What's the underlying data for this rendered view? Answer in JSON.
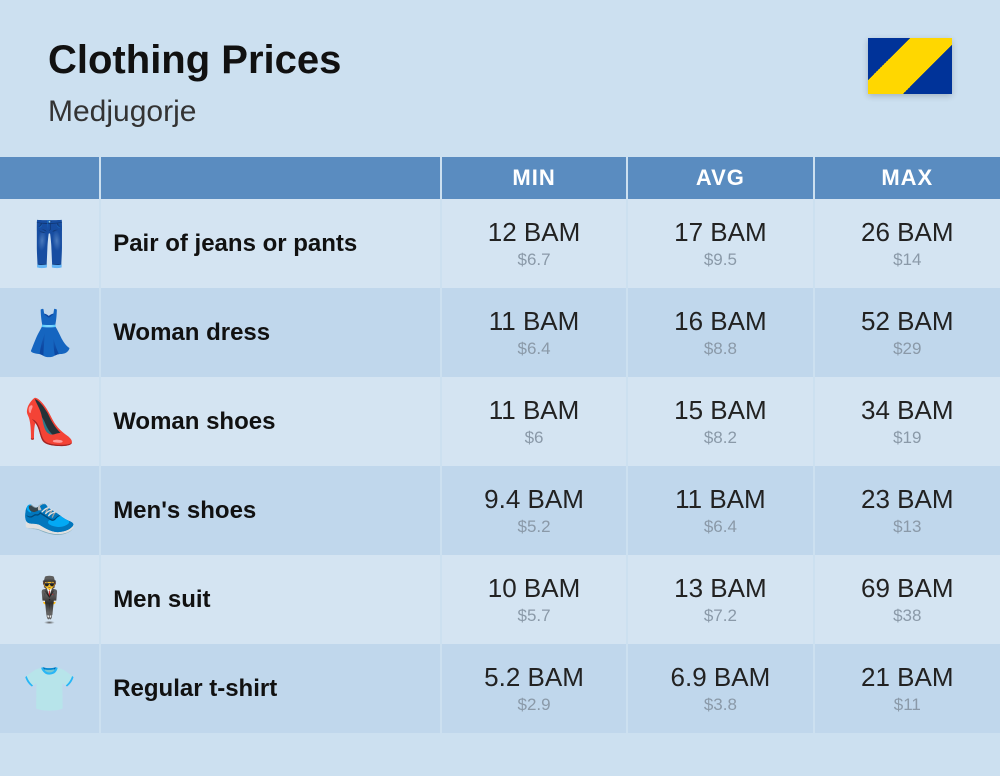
{
  "header": {
    "title": "Clothing Prices",
    "subtitle": "Medjugorje"
  },
  "columns": {
    "min": "MIN",
    "avg": "AVG",
    "max": "MAX"
  },
  "colors": {
    "page_bg": "#cce0f0",
    "header_row_bg": "#5a8cc0",
    "row_even_bg": "#d4e4f2",
    "row_odd_bg": "#c0d7ec",
    "title_color": "#111111",
    "primary_text": "#222222",
    "secondary_text": "#8a99a8"
  },
  "typography": {
    "title_fontsize": 40,
    "title_weight": 800,
    "subtitle_fontsize": 30,
    "column_header_fontsize": 22,
    "row_name_fontsize": 24,
    "row_name_weight": 800,
    "primary_value_fontsize": 26,
    "secondary_value_fontsize": 17
  },
  "layout": {
    "icon_col_width": 100,
    "name_col_width": 340,
    "value_col_width": 186
  },
  "rows": [
    {
      "icon": "👖",
      "name": "Pair of jeans or pants",
      "min": {
        "primary": "12 BAM",
        "secondary": "$6.7"
      },
      "avg": {
        "primary": "17 BAM",
        "secondary": "$9.5"
      },
      "max": {
        "primary": "26 BAM",
        "secondary": "$14"
      }
    },
    {
      "icon": "👗",
      "name": "Woman dress",
      "min": {
        "primary": "11 BAM",
        "secondary": "$6.4"
      },
      "avg": {
        "primary": "16 BAM",
        "secondary": "$8.8"
      },
      "max": {
        "primary": "52 BAM",
        "secondary": "$29"
      }
    },
    {
      "icon": "👠",
      "name": "Woman shoes",
      "min": {
        "primary": "11 BAM",
        "secondary": "$6"
      },
      "avg": {
        "primary": "15 BAM",
        "secondary": "$8.2"
      },
      "max": {
        "primary": "34 BAM",
        "secondary": "$19"
      }
    },
    {
      "icon": "👟",
      "name": "Men's shoes",
      "min": {
        "primary": "9.4 BAM",
        "secondary": "$5.2"
      },
      "avg": {
        "primary": "11 BAM",
        "secondary": "$6.4"
      },
      "max": {
        "primary": "23 BAM",
        "secondary": "$13"
      }
    },
    {
      "icon": "🕴️",
      "name": "Men suit",
      "min": {
        "primary": "10 BAM",
        "secondary": "$5.7"
      },
      "avg": {
        "primary": "13 BAM",
        "secondary": "$7.2"
      },
      "max": {
        "primary": "69 BAM",
        "secondary": "$38"
      }
    },
    {
      "icon": "👕",
      "name": "Regular t-shirt",
      "min": {
        "primary": "5.2 BAM",
        "secondary": "$2.9"
      },
      "avg": {
        "primary": "6.9 BAM",
        "secondary": "$3.8"
      },
      "max": {
        "primary": "21 BAM",
        "secondary": "$11"
      }
    }
  ]
}
